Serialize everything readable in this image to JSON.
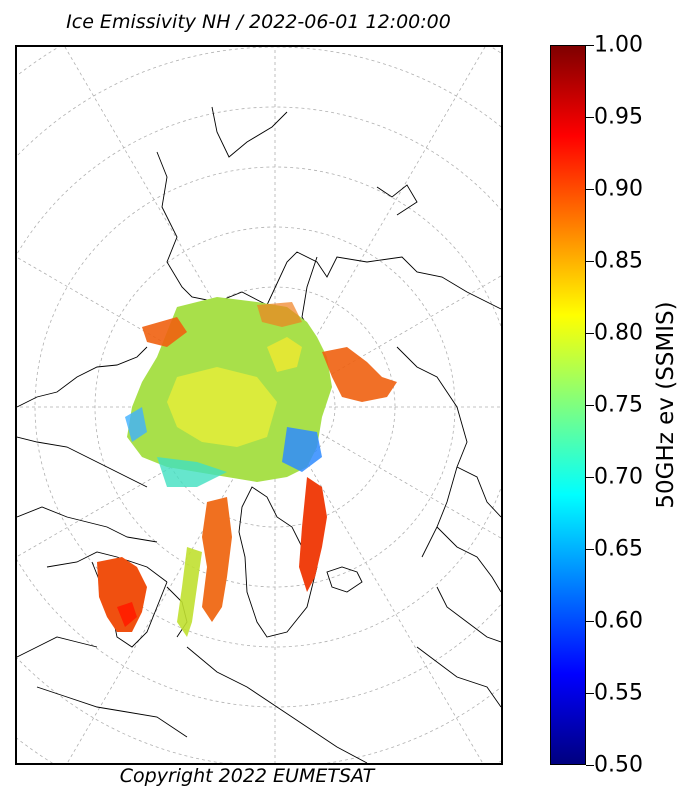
{
  "title": "Ice Emissivity NH / 2022-06-01 12:00:00",
  "copyright": "Copyright 2022 EUMETSAT",
  "colorbar": {
    "label": "50GHz ev (SSMIS)",
    "min": 0.5,
    "max": 1.0,
    "ticks": [
      "1.00",
      "0.95",
      "0.90",
      "0.85",
      "0.80",
      "0.75",
      "0.70",
      "0.65",
      "0.60",
      "0.55",
      "0.50"
    ],
    "colormap": "jet",
    "colors": [
      "#00007f",
      "#0000ff",
      "#007fff",
      "#00ffff",
      "#7fff7f",
      "#ffff00",
      "#ff7f00",
      "#ff0000",
      "#7f0000"
    ]
  },
  "map": {
    "projection": "north polar stereographic",
    "region": "Northern Hemisphere",
    "graticule": "dashed gray",
    "ice_colors": {
      "typical": "#a8e04a",
      "yellow": "#f0e830",
      "high": "#f06010",
      "cyan": "#40e0c0",
      "blue": "#2060ff"
    }
  }
}
